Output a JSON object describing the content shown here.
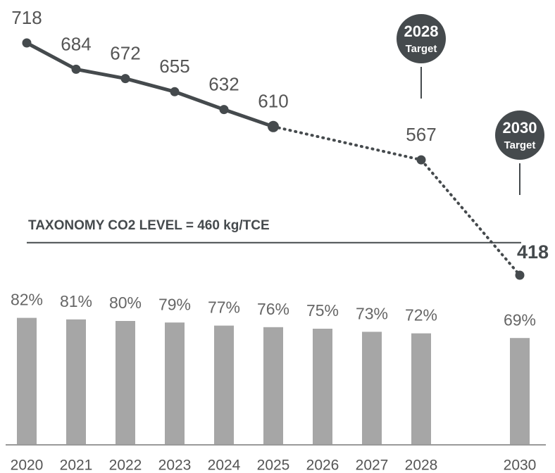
{
  "chart_data": {
    "type": "line-bar",
    "x": [
      2020,
      2021,
      2022,
      2023,
      2024,
      2025,
      2026,
      2027,
      2028,
      2030
    ],
    "xlim": [
      2019.5,
      2030.5
    ],
    "ylim": [
      380,
      740
    ],
    "y2lim": [
      0,
      100
    ],
    "bars": {
      "color": "#a6a6a6",
      "values": [
        82,
        81,
        80,
        79,
        77,
        76,
        75,
        73,
        72,
        69
      ],
      "value_labels": [
        "82%",
        "81%",
        "80%",
        "79%",
        "77%",
        "76%",
        "75%",
        "73%",
        "72%",
        "69%"
      ]
    },
    "series": [
      {
        "style": "solid",
        "color": "#454a4d",
        "x": [
          2020,
          2021,
          2022,
          2023,
          2024,
          2025
        ],
        "values": [
          718,
          684,
          672,
          655,
          632,
          610
        ]
      },
      {
        "style": "dotted",
        "color": "#454a4d",
        "x": [
          2028,
          2030
        ],
        "values": [
          567,
          418
        ]
      }
    ],
    "reference": {
      "label": "TAXONOMY CO2 LEVEL = 460 kg/TCE",
      "value": 460
    },
    "annotations": [
      {
        "x": 2028,
        "title": "2028",
        "label": "Target"
      },
      {
        "x": 2030,
        "title": "2030",
        "label": "Target"
      }
    ]
  }
}
